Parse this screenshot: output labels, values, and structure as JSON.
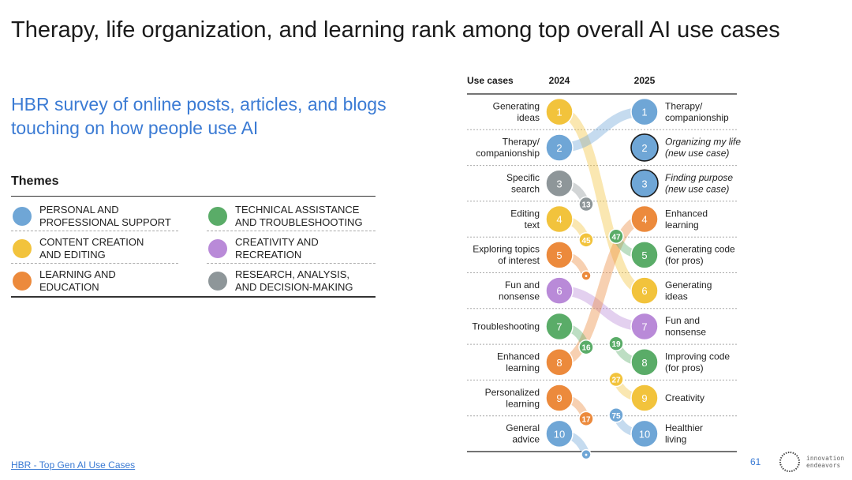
{
  "slide": {
    "title": "Therapy, life organization, and learning rank among top overall AI use cases",
    "subtitle": "HBR survey of online posts, articles, and blogs touching on how people use AI",
    "themes_heading": "Themes",
    "source_link": "HBR - Top Gen AI Use Cases",
    "page_number": "61",
    "logo_text": "innovation\nendeavors"
  },
  "themes": [
    {
      "key": "personal",
      "label": "Personal and\nprofessional support",
      "color": "#6fa6d6"
    },
    {
      "key": "content",
      "label": "Content creation\nand editing",
      "color": "#f2c33c"
    },
    {
      "key": "learning",
      "label": "Learning and\neducation",
      "color": "#ec8a3c"
    },
    {
      "key": "technical",
      "label": "Technical assistance\nand troubleshooting",
      "color": "#5aac68"
    },
    {
      "key": "creativity",
      "label": "Creativity and\nrecreation",
      "color": "#b98ad8"
    },
    {
      "key": "research",
      "label": "Research, analysis,\nand decision-making",
      "color": "#8e9699"
    }
  ],
  "chart_data": {
    "type": "slope",
    "header_use_cases": "Use cases",
    "header_left": "2024",
    "header_right": "2025",
    "left": [
      {
        "rank": "1",
        "label": "Generating\nideas",
        "theme": "content"
      },
      {
        "rank": "2",
        "label": "Therapy/\ncompanionship",
        "theme": "personal"
      },
      {
        "rank": "3",
        "label": "Specific\nsearch",
        "theme": "research"
      },
      {
        "rank": "4",
        "label": "Editing\ntext",
        "theme": "content"
      },
      {
        "rank": "5",
        "label": "Exploring topics\nof interest",
        "theme": "learning"
      },
      {
        "rank": "6",
        "label": "Fun and\nnonsense",
        "theme": "creativity"
      },
      {
        "rank": "7",
        "label": "Troubleshooting",
        "theme": "technical"
      },
      {
        "rank": "8",
        "label": "Enhanced\nlearning",
        "theme": "learning"
      },
      {
        "rank": "9",
        "label": "Personalized\nlearning",
        "theme": "learning"
      },
      {
        "rank": "10",
        "label": "General\nadvice",
        "theme": "personal"
      }
    ],
    "right": [
      {
        "rank": "1",
        "label": "Therapy/\ncompanionship",
        "theme": "personal",
        "new": false
      },
      {
        "rank": "2",
        "label": "Organizing my life\n(new use case)",
        "theme": "personal",
        "new": true
      },
      {
        "rank": "3",
        "label": "Finding purpose\n(new use case)",
        "theme": "personal",
        "new": true
      },
      {
        "rank": "4",
        "label": "Enhanced\nlearning",
        "theme": "learning",
        "new": false
      },
      {
        "rank": "5",
        "label": "Generating code\n(for pros)",
        "theme": "technical",
        "new": false
      },
      {
        "rank": "6",
        "label": "Generating\nideas",
        "theme": "content",
        "new": false
      },
      {
        "rank": "7",
        "label": "Fun and\nnonsense",
        "theme": "creativity",
        "new": false
      },
      {
        "rank": "8",
        "label": "Improving code\n(for pros)",
        "theme": "technical",
        "new": false
      },
      {
        "rank": "9",
        "label": "Creativity",
        "theme": "content",
        "new": false
      },
      {
        "rank": "10",
        "label": "Healthier\nliving",
        "theme": "personal",
        "new": false
      }
    ],
    "flows": [
      {
        "from_2024": 1,
        "to_2025": 6
      },
      {
        "from_2024": 2,
        "to_2025": 1
      },
      {
        "from_2024": 6,
        "to_2025": 7
      },
      {
        "from_2024": 8,
        "to_2025": 4
      }
    ],
    "dropouts": [
      {
        "rank_2024": 3,
        "new_rank": "13",
        "theme": "research"
      },
      {
        "rank_2024": 4,
        "new_rank": "45",
        "theme": "content"
      },
      {
        "rank_2024": 5,
        "new_rank": "•",
        "theme": "learning"
      },
      {
        "rank_2024": 7,
        "new_rank": "16",
        "theme": "technical"
      },
      {
        "rank_2024": 9,
        "new_rank": "17",
        "theme": "learning"
      },
      {
        "rank_2024": 10,
        "new_rank": "•",
        "theme": "personal"
      }
    ],
    "newcomers": [
      {
        "rank_2025": 5,
        "prev_rank": "47",
        "theme": "technical"
      },
      {
        "rank_2025": 8,
        "prev_rank": "19",
        "theme": "technical"
      },
      {
        "rank_2025": 9,
        "prev_rank": "27",
        "theme": "content"
      },
      {
        "rank_2025": 10,
        "prev_rank": "75",
        "theme": "personal"
      }
    ]
  }
}
